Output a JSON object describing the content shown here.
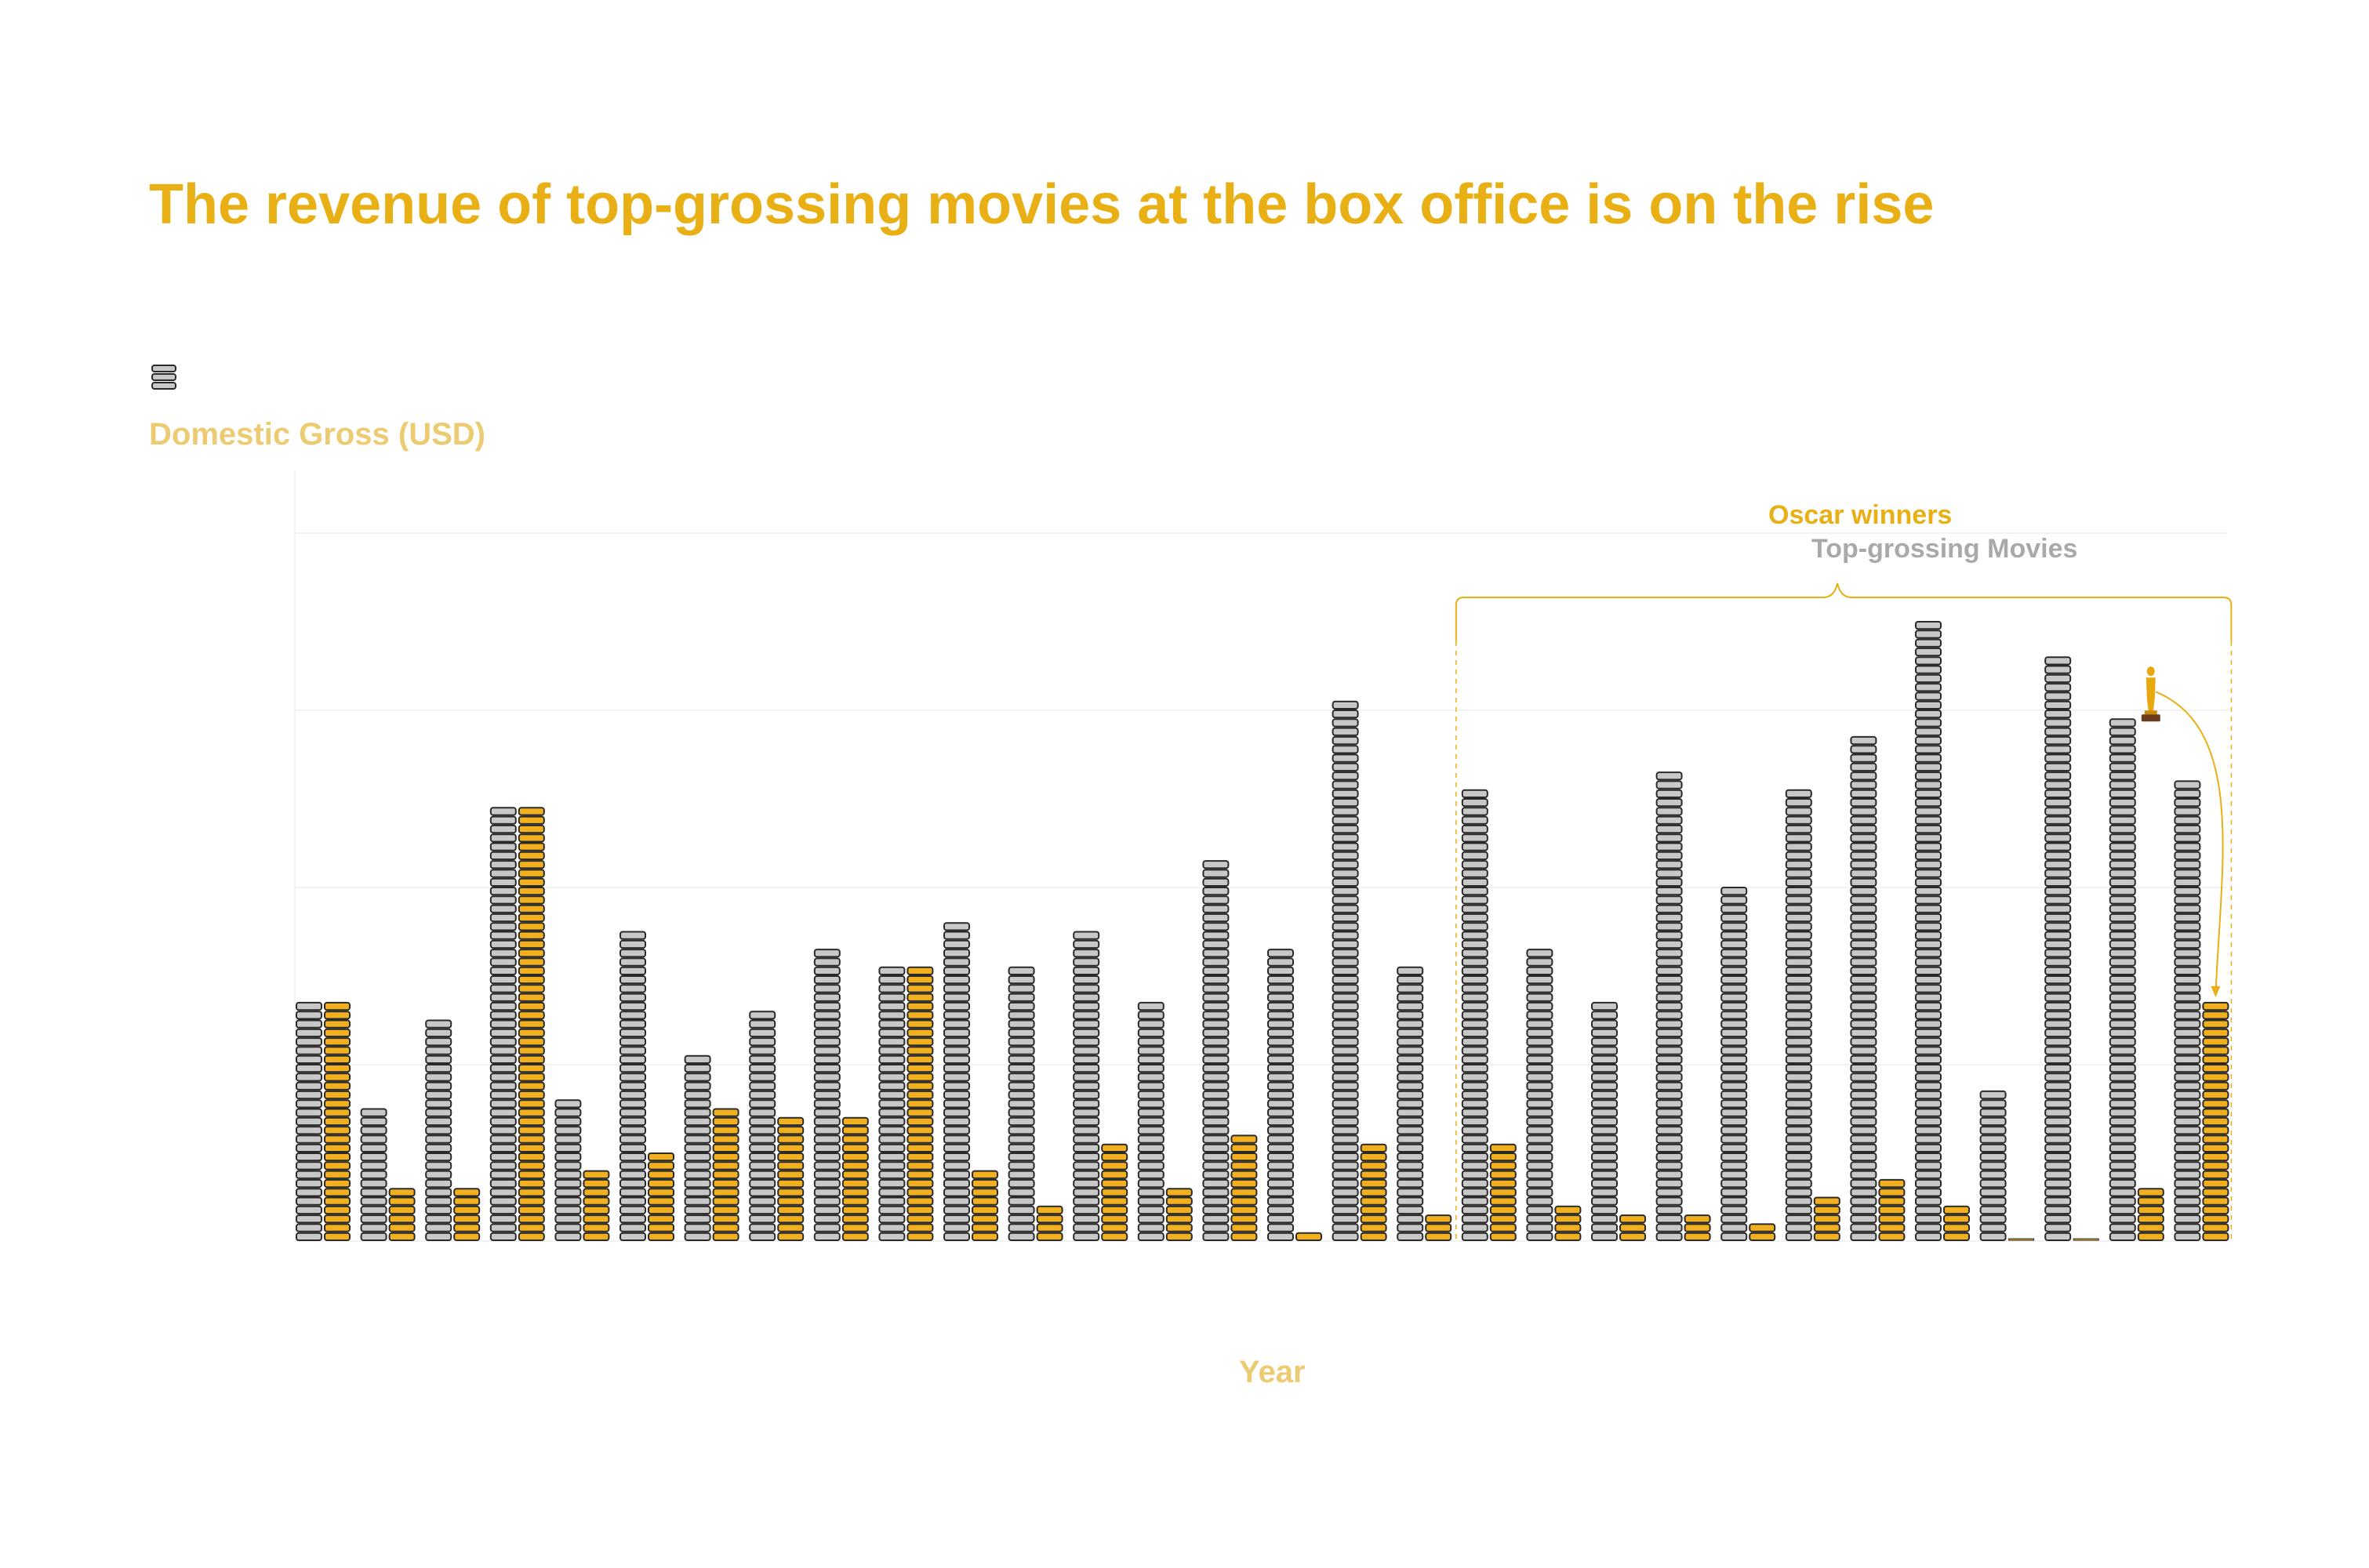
{
  "title": "The revenue of top-grossing movies at the box office is on the rise",
  "colors": {
    "title": "#e8b014",
    "axis_label": "#eccb72",
    "top_grossing_fill": "#c8c8c8",
    "oscar_fill": "#f2b01e",
    "coin_stroke": "#2a2a2a",
    "bracket": "#e8b014",
    "annotation_top_grossing": "#a9a9a9"
  },
  "legend": {
    "icon": "coin-stack-icon"
  },
  "annotation": {
    "oscar_label": "Oscar winners",
    "top_grossing_label": "Top-grossing Movies",
    "icon": "oscar-statuette-icon"
  },
  "chart_data": {
    "type": "bar",
    "xlabel": "Year",
    "ylabel": "Domestic Gross (USD)",
    "y_units": "coins",
    "grid": true,
    "categories": [
      "",
      "",
      "",
      "",
      "",
      "",
      "",
      "",
      "",
      "",
      "",
      "",
      "",
      "",
      "",
      "",
      "",
      "",
      "",
      "",
      "",
      "",
      "",
      "",
      "",
      "",
      "",
      "",
      "",
      ""
    ],
    "series": [
      {
        "key": "top",
        "values": [
          27,
          15,
          25,
          49,
          16,
          35,
          21,
          26,
          33,
          31,
          36,
          31,
          35,
          27,
          43,
          33,
          61,
          31,
          51,
          33,
          27,
          53,
          40,
          51,
          57,
          70,
          17,
          66,
          59,
          52
        ]
      },
      {
        "key": "oscar",
        "values": [
          27,
          6,
          6,
          49,
          8,
          10,
          15,
          14,
          14,
          31,
          8,
          4,
          11,
          6,
          12,
          1,
          11,
          3,
          11,
          4,
          3,
          3,
          2,
          5,
          7,
          4,
          0,
          0,
          6,
          27
        ]
      }
    ],
    "annotations": [
      {
        "type": "bracket",
        "from_index": 18,
        "to_index": 29,
        "labels": [
          "Oscar winners",
          "Top-grossing Movies"
        ]
      }
    ]
  }
}
